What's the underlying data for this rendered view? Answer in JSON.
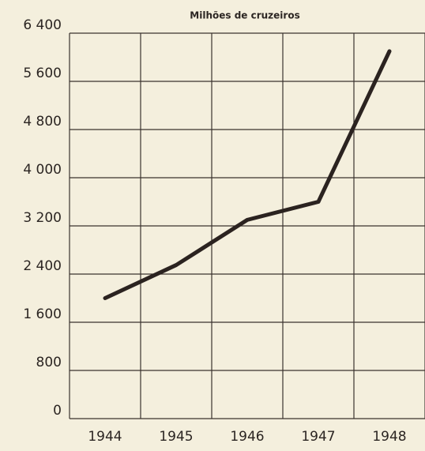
{
  "chart_data": {
    "type": "line",
    "title": "Milhões de cruzeiros",
    "categories": [
      "1944",
      "1945",
      "1946",
      "1947",
      "1948"
    ],
    "series": [
      {
        "name": null,
        "color": "#2b2320",
        "values": [
          2000,
          2550,
          3300,
          3600,
          6100
        ]
      }
    ],
    "ylim": [
      0,
      6400
    ],
    "yticks": [
      0,
      800,
      {
        "value": 1600,
        "label": "1 600"
      },
      {
        "value": 2400,
        "label": "2 400"
      },
      {
        "value": 3200,
        "label": "3 200"
      },
      {
        "value": 4000,
        "label": "4 000"
      },
      {
        "value": 4800,
        "label": "4 800"
      },
      {
        "value": 5600,
        "label": "5 600"
      },
      {
        "value": 6400,
        "label": "6 400"
      }
    ],
    "grid": true
  }
}
